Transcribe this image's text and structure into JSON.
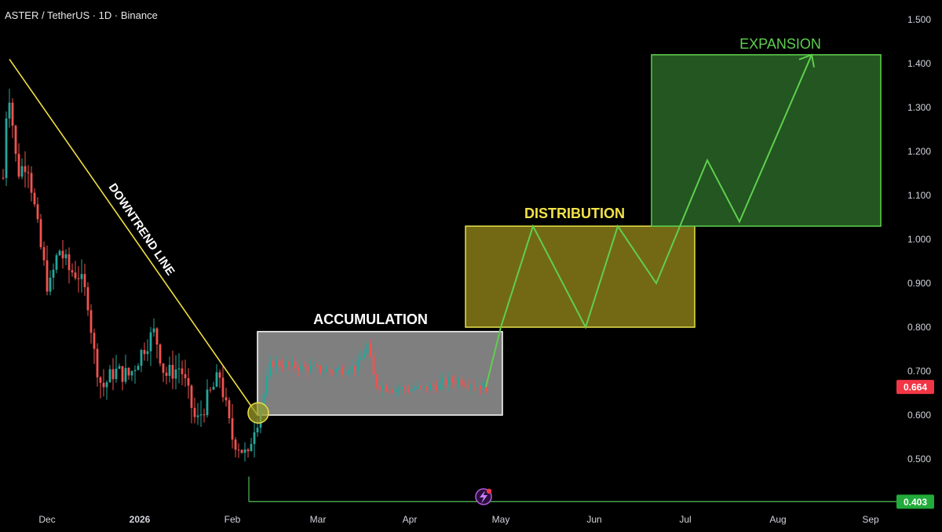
{
  "header": {
    "title": "ASTER / TetherUS · 1D · Binance"
  },
  "chart_data": {
    "type": "candlestick",
    "y_axis": {
      "ticks": [
        "1.500",
        "1.400",
        "1.300",
        "1.200",
        "1.100",
        "1.000",
        "0.900",
        "0.800",
        "0.700",
        "0.600",
        "0.500"
      ],
      "tick_values": [
        1.5,
        1.4,
        1.3,
        1.2,
        1.1,
        1.0,
        0.9,
        0.8,
        0.7,
        0.6,
        0.5
      ],
      "range": [
        0.38,
        1.52
      ],
      "position": "right"
    },
    "x_axis": {
      "ticks": [
        "Dec",
        "2026",
        "Feb",
        "Mar",
        "Apr",
        "May",
        "Jun",
        "Jul",
        "Aug",
        "Sep"
      ]
    },
    "price_labels": [
      {
        "value": 0.664,
        "text": "0.664",
        "color": "#f23645"
      },
      {
        "value": 0.403,
        "text": "0.403",
        "color": "#22ab3a"
      }
    ],
    "support_line": {
      "value": 0.403,
      "color": "#4caf50"
    },
    "trendline": {
      "label": "DOWNTREND LINE",
      "color": "#f0e040",
      "from": {
        "date": "Nov 21",
        "value": 1.41
      },
      "to": {
        "date": "Feb 10",
        "value": 0.6
      }
    },
    "zones": [
      {
        "label": "ACCUMULATION",
        "from": "Feb 10",
        "to": "May",
        "top": 0.79,
        "bottom": 0.6,
        "fill": "#8a8a8a",
        "stroke": "#ffffff",
        "label_color": "#ffffff"
      },
      {
        "label": "DISTRIBUTION",
        "from": "May (early)",
        "to": "Jul (early)",
        "top": 1.03,
        "bottom": 0.8,
        "fill": "#7f7416",
        "stroke": "#e8e04a",
        "label_color": "#f3e34a"
      },
      {
        "label": "EXPANSION",
        "from": "Jul (late)",
        "to": "Sep",
        "top": 1.42,
        "bottom": 1.03,
        "fill": "#275f24",
        "stroke": "#5fcf4f",
        "label_color": "#5fcf4f"
      }
    ],
    "projection_path": [
      0.664,
      0.8,
      1.03,
      0.8,
      1.03,
      0.9,
      1.18,
      1.04,
      1.42
    ],
    "colors": {
      "up": "#26a69a",
      "down": "#ef5350",
      "background": "#000000",
      "projection": "#5fcf4f"
    },
    "ohlc_description": "daily candles, downtrend from ~1.41 in late Nov to ~0.46 low in early Feb, then sideways range 0.63–0.79 through April"
  }
}
